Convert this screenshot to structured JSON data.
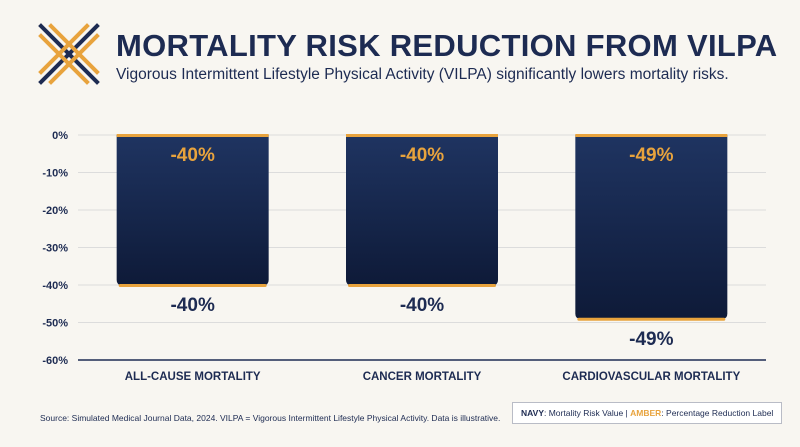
{
  "header": {
    "title": "MORTALITY RISK REDUCTION FROM VILPA",
    "subtitle": "Vigorous Intermittent Lifestyle Physical Activity (VILPA) significantly lowers mortality risks."
  },
  "colors": {
    "navy": "#1d2b52",
    "bar_top": "#1f3461",
    "bar_bottom": "#0e1a38",
    "amber": "#e8a33d",
    "background": "#f8f6f1"
  },
  "icons": {
    "logo": "crossed-lines-logo-icon"
  },
  "chart_data": {
    "type": "bar",
    "categories": [
      "ALL-CAUSE MORTALITY",
      "CANCER MORTALITY",
      "CARDIOVASCULAR MORTALITY"
    ],
    "values": [
      -40,
      -40,
      -49
    ],
    "top_labels": [
      "-40%",
      "-40%",
      "-49%"
    ],
    "bottom_labels": [
      "-40%",
      "-40%",
      "-49%"
    ],
    "yticks": [
      "0%",
      "-10%",
      "-20%",
      "-30%",
      "-40%",
      "-50%",
      "-60%"
    ],
    "ylim": [
      -60,
      0
    ],
    "grid": true,
    "title": "",
    "xlabel": "",
    "ylabel": ""
  },
  "footer": {
    "source": "Source: Simulated Medical Journal Data, 2024. VILPA = Vigorous Intermittent Lifestyle Physical Activity. Data is illustrative.",
    "legend_navy_word": "NAVY",
    "legend_navy_text": ": Mortality Risk Value | ",
    "legend_amber_word": "AMBER",
    "legend_amber_text": ": Percentage Reduction Label"
  }
}
